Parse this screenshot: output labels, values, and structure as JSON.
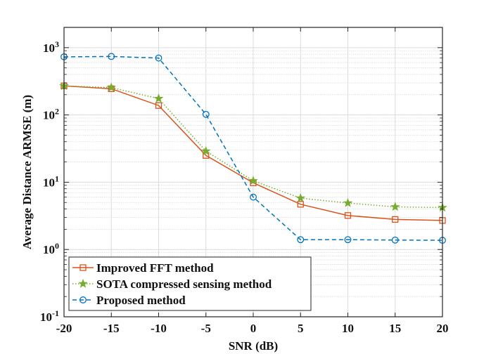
{
  "chart_data": {
    "type": "line",
    "title": "",
    "xlabel": "SNR (dB)",
    "ylabel": "Average Distance ARMSE (m)",
    "x": [
      -20,
      -15,
      -10,
      -5,
      0,
      5,
      10,
      15,
      20
    ],
    "xlim": [
      -20,
      20
    ],
    "ylim": [
      0.1,
      2000
    ],
    "yscale": "log",
    "grid": true,
    "minor_grid": true,
    "legend_position": "bottom-left",
    "x_ticks": [
      -20,
      -15,
      -10,
      -5,
      0,
      5,
      10,
      15,
      20
    ],
    "x_tick_labels": [
      "-20",
      "-15",
      "-10",
      "-5",
      "0",
      "5",
      "10",
      "15",
      "20"
    ],
    "y_ticks": [
      {
        "value": 0.1,
        "base": "10",
        "exp": "-1"
      },
      {
        "value": 1,
        "base": "10",
        "exp": "0"
      },
      {
        "value": 10,
        "base": "10",
        "exp": "1"
      },
      {
        "value": 100,
        "base": "10",
        "exp": "2"
      },
      {
        "value": 1000,
        "base": "10",
        "exp": "3"
      }
    ],
    "series": [
      {
        "name": "Improved FFT method",
        "color": "#D95319",
        "line_style": "solid",
        "marker": "square",
        "values": [
          270,
          245,
          138,
          25,
          9.8,
          4.7,
          3.2,
          2.8,
          2.7
        ]
      },
      {
        "name": "SOTA compressed sensing method",
        "color": "#77AC30",
        "line_style": "dotted",
        "marker": "star",
        "values": [
          270,
          255,
          175,
          29,
          10.5,
          5.8,
          4.9,
          4.3,
          4.2
        ]
      },
      {
        "name": "Proposed method",
        "color": "#0072BD",
        "line_style": "dashed",
        "marker": "circle",
        "values": [
          730,
          740,
          700,
          102,
          6,
          1.4,
          1.4,
          1.38,
          1.37
        ]
      }
    ]
  }
}
